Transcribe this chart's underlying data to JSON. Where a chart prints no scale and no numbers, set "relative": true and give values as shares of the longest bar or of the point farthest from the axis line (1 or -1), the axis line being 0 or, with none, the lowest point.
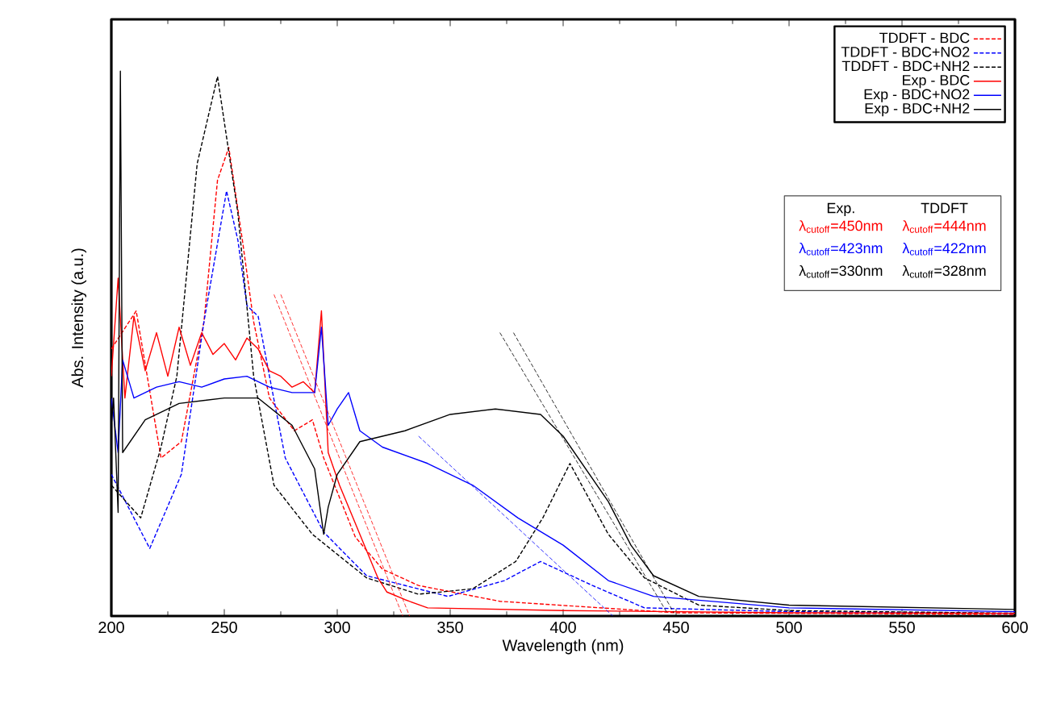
{
  "chart_data": {
    "type": "line",
    "xlabel": "Wavelength (nm)",
    "ylabel": "Abs. Intensity (a.u.)",
    "relative": true,
    "xlim": [
      200,
      600
    ],
    "xticks": [
      200,
      250,
      300,
      350,
      400,
      450,
      500,
      550,
      600
    ],
    "legend": "top right",
    "marker": "none",
    "series": [
      {
        "name": "TDDFT - BDC",
        "color": "#ff0000",
        "line_style": "dashed",
        "x": [
          200,
          211,
          222,
          231,
          241,
          247,
          252,
          258,
          263,
          270,
          281,
          289,
          294,
          308,
          320,
          336,
          372,
          450,
          600
        ],
        "values": [
          0.49,
          0.56,
          0.29,
          0.32,
          0.54,
          0.8,
          0.86,
          0.69,
          0.54,
          0.4,
          0.34,
          0.36,
          0.29,
          0.145,
          0.086,
          0.056,
          0.027,
          0.006,
          0.003
        ]
      },
      {
        "name": "TDDFT - BDC+NO2",
        "color": "#0000ff",
        "line_style": "dashed",
        "x": [
          200,
          217,
          231,
          241,
          251,
          256,
          260,
          265,
          270,
          277,
          294,
          313,
          349,
          374,
          390,
          413,
          436,
          500,
          600
        ],
        "values": [
          0.26,
          0.124,
          0.26,
          0.54,
          0.78,
          0.69,
          0.57,
          0.55,
          0.44,
          0.29,
          0.154,
          0.074,
          0.036,
          0.065,
          0.1,
          0.056,
          0.015,
          0.008,
          0.005
        ]
      },
      {
        "name": "TDDFT - BDC+NH2",
        "color": "#000000",
        "line_style": "dashed",
        "x": [
          200,
          213,
          222,
          229,
          238,
          247,
          256,
          263,
          272,
          289,
          313,
          336,
          360,
          379,
          391,
          403,
          420,
          436,
          460,
          500,
          600
        ],
        "values": [
          0.24,
          0.18,
          0.31,
          0.44,
          0.83,
          0.99,
          0.74,
          0.44,
          0.24,
          0.15,
          0.07,
          0.04,
          0.05,
          0.1,
          0.18,
          0.28,
          0.15,
          0.07,
          0.02,
          0.01,
          0.005
        ]
      },
      {
        "name": "Exp - BDC",
        "color": "#ff0000",
        "line_style": "solid",
        "x": [
          200,
          203,
          206,
          210,
          215,
          220,
          225,
          230,
          235,
          240,
          245,
          250,
          255,
          260,
          265,
          270,
          275,
          280,
          285,
          290,
          293,
          296,
          301,
          307,
          313,
          318,
          322,
          330,
          340,
          400,
          500,
          600
        ],
        "values": [
          0.44,
          0.62,
          0.4,
          0.55,
          0.45,
          0.52,
          0.44,
          0.53,
          0.46,
          0.52,
          0.48,
          0.5,
          0.47,
          0.51,
          0.49,
          0.45,
          0.44,
          0.42,
          0.43,
          0.41,
          0.56,
          0.3,
          0.24,
          0.18,
          0.12,
          0.07,
          0.044,
          0.03,
          0.015,
          0.01,
          0.006,
          0.005
        ]
      },
      {
        "name": "Exp - BDC+NO2",
        "color": "#0000ff",
        "line_style": "solid",
        "x": [
          200,
          203,
          205,
          210,
          220,
          230,
          240,
          250,
          260,
          270,
          280,
          290,
          293,
          296,
          300,
          305,
          310,
          320,
          340,
          360,
          380,
          400,
          420,
          440,
          500,
          600
        ],
        "values": [
          0.4,
          0.3,
          0.47,
          0.4,
          0.42,
          0.43,
          0.42,
          0.435,
          0.44,
          0.42,
          0.41,
          0.41,
          0.53,
          0.35,
          0.38,
          0.41,
          0.34,
          0.31,
          0.28,
          0.24,
          0.18,
          0.13,
          0.065,
          0.036,
          0.015,
          0.008
        ]
      },
      {
        "name": "Exp - BDC+NH2",
        "color": "#000000",
        "line_style": "solid",
        "x": [
          200,
          201,
          203,
          204,
          205,
          210,
          215,
          230,
          250,
          265,
          280,
          290,
          294,
          296,
          300,
          310,
          330,
          350,
          370,
          390,
          400,
          410,
          420,
          430,
          440,
          460,
          500,
          600
        ],
        "values": [
          0.35,
          0.4,
          0.19,
          1.0,
          0.3,
          0.33,
          0.36,
          0.39,
          0.4,
          0.4,
          0.35,
          0.27,
          0.15,
          0.2,
          0.26,
          0.32,
          0.34,
          0.37,
          0.38,
          0.37,
          0.33,
          0.27,
          0.21,
          0.13,
          0.074,
          0.036,
          0.02,
          0.012
        ]
      },
      {
        "color": "#ff0000",
        "line_style": "dashed",
        "x": [
          272,
          329
        ],
        "values": [
          0.59,
          0
        ]
      },
      {
        "color": "#ff0000",
        "line_style": "dashed",
        "x": [
          275,
          332
        ],
        "values": [
          0.59,
          0
        ]
      },
      {
        "color": "#000000",
        "line_style": "dashed",
        "x": [
          372,
          446
        ],
        "values": [
          0.52,
          0.006
        ]
      },
      {
        "color": "#000000",
        "line_style": "dashed",
        "x": [
          378,
          449
        ],
        "values": [
          0.52,
          0.006
        ]
      },
      {
        "color": "#0000ff",
        "line_style": "dashed",
        "x": [
          336,
          422
        ],
        "values": [
          0.33,
          0
        ]
      }
    ],
    "annotations": [
      "Exp.",
      "TDDFT",
      "λ$_{cutoff}$=450nm",
      "λ$_{cutoff}$=444nm",
      "λ$_{cutoff}$=423nm",
      "λ$_{cutoff}$=422nm",
      "λ$_{cutoff}$=330nm",
      "λ$_{cutoff}$=328nm"
    ]
  }
}
